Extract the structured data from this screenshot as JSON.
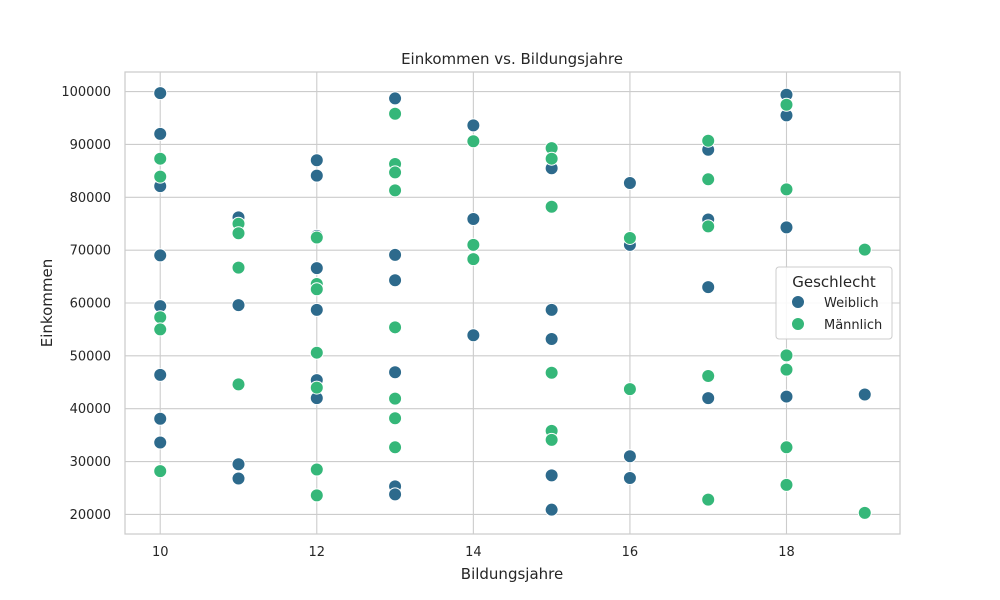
{
  "chart_data": {
    "type": "scatter",
    "title": "Einkommen vs. Bildungsjahre",
    "xlabel": "Bildungsjahre",
    "ylabel": "Einkommen",
    "xlim": [
      9.55,
      19.45
    ],
    "ylim": [
      16300,
      103700
    ],
    "xticks": [
      "10",
      "12",
      "14",
      "16",
      "18"
    ],
    "yticks": [
      "20000",
      "30000",
      "40000",
      "50000",
      "60000",
      "70000",
      "80000",
      "90000",
      "100000"
    ],
    "grid": true,
    "legend": {
      "title": "Geschlecht",
      "placement": "right"
    },
    "series": [
      {
        "name": "Weiblich",
        "color": "#2d6a8c",
        "points": [
          [
            10,
            99700
          ],
          [
            10,
            92000
          ],
          [
            10,
            82100
          ],
          [
            10,
            69000
          ],
          [
            10,
            59400
          ],
          [
            10,
            46400
          ],
          [
            10,
            38100
          ],
          [
            10,
            33600
          ],
          [
            11,
            76200
          ],
          [
            11,
            59600
          ],
          [
            11,
            29500
          ],
          [
            11,
            26800
          ],
          [
            12,
            87000
          ],
          [
            12,
            84100
          ],
          [
            12,
            72700
          ],
          [
            12,
            66600
          ],
          [
            12,
            58700
          ],
          [
            12,
            45400
          ],
          [
            12,
            42000
          ],
          [
            13,
            98700
          ],
          [
            13,
            69100
          ],
          [
            13,
            64300
          ],
          [
            13,
            46900
          ],
          [
            13,
            25300
          ],
          [
            13,
            23800
          ],
          [
            14,
            93600
          ],
          [
            14,
            75900
          ],
          [
            14,
            53900
          ],
          [
            15,
            85500
          ],
          [
            15,
            58700
          ],
          [
            15,
            53200
          ],
          [
            15,
            27400
          ],
          [
            15,
            20900
          ],
          [
            16,
            82700
          ],
          [
            16,
            71000
          ],
          [
            16,
            31000
          ],
          [
            16,
            26900
          ],
          [
            17,
            89000
          ],
          [
            17,
            75800
          ],
          [
            17,
            63000
          ],
          [
            17,
            42000
          ],
          [
            18,
            99400
          ],
          [
            18,
            95500
          ],
          [
            18,
            74300
          ],
          [
            18,
            42300
          ],
          [
            19,
            42700
          ]
        ]
      },
      {
        "name": "Männlich",
        "color": "#35b779",
        "points": [
          [
            10,
            87300
          ],
          [
            10,
            83900
          ],
          [
            10,
            57300
          ],
          [
            10,
            55000
          ],
          [
            10,
            28200
          ],
          [
            11,
            75000
          ],
          [
            11,
            73200
          ],
          [
            11,
            66700
          ],
          [
            11,
            44600
          ],
          [
            12,
            72400
          ],
          [
            12,
            63600
          ],
          [
            12,
            62600
          ],
          [
            12,
            50600
          ],
          [
            12,
            44000
          ],
          [
            12,
            28500
          ],
          [
            12,
            23600
          ],
          [
            13,
            95800
          ],
          [
            13,
            86300
          ],
          [
            13,
            84700
          ],
          [
            13,
            81300
          ],
          [
            13,
            55400
          ],
          [
            13,
            41900
          ],
          [
            13,
            38200
          ],
          [
            13,
            32700
          ],
          [
            14,
            90600
          ],
          [
            14,
            71000
          ],
          [
            14,
            68300
          ],
          [
            15,
            89300
          ],
          [
            15,
            87300
          ],
          [
            15,
            78200
          ],
          [
            15,
            46800
          ],
          [
            15,
            35800
          ],
          [
            15,
            34100
          ],
          [
            16,
            72300
          ],
          [
            16,
            43700
          ],
          [
            17,
            90700
          ],
          [
            17,
            83400
          ],
          [
            17,
            74500
          ],
          [
            17,
            46200
          ],
          [
            17,
            22800
          ],
          [
            18,
            97500
          ],
          [
            18,
            81500
          ],
          [
            18,
            50100
          ],
          [
            18,
            47400
          ],
          [
            18,
            32700
          ],
          [
            18,
            25600
          ],
          [
            19,
            70100
          ],
          [
            19,
            20300
          ]
        ]
      }
    ]
  }
}
